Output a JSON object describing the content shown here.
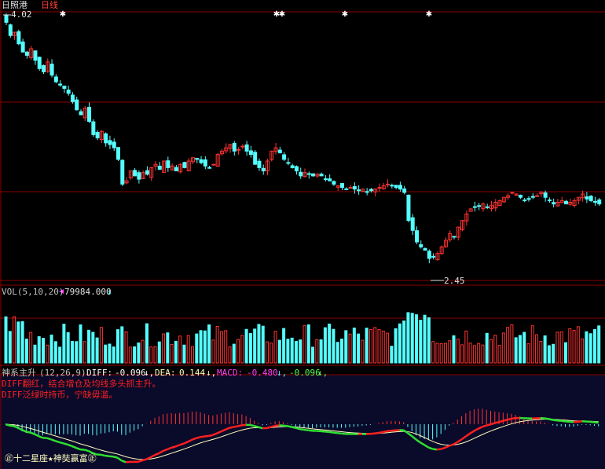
{
  "header": {
    "stock_name": "日照港",
    "period": "日线",
    "high_label": "4.02",
    "low_label": "2.45"
  },
  "volume_panel": {
    "label": "VOL(5,10,20)",
    "value": "79984.000"
  },
  "indicator_panel": {
    "name": "神系主升",
    "params": "(12,26,9)",
    "diff_label": "DIFF:",
    "diff_value": "-0.096",
    "dea_label": "DEA:",
    "dea_value": "0.144",
    "macd_label": "MACD:",
    "macd_value": "-0.480",
    "extra_value": "-0.096",
    "note1": "DIFF翻红，结合增仓及均线多头抓主升。",
    "note2": "DIFF泛绿时持币，宁缺毋滥。",
    "brand": "㊣十二星座★神奘赢富㊣"
  },
  "colors": {
    "up": "#ff3232",
    "down": "#54ffff",
    "grid": "#8b0000",
    "diff_up": "#ff2020",
    "diff_down": "#30e030",
    "dea": "#ffffc0",
    "macd_label": "#ff40ff",
    "note": "#ff2020",
    "panel_bg": "#0a0a2a"
  },
  "chart_data": {
    "type": "candlestick",
    "price_range": [
      2.45,
      4.02
    ],
    "close": [
      3.98,
      3.9,
      3.92,
      3.85,
      3.8,
      3.78,
      3.82,
      3.75,
      3.7,
      3.68,
      3.74,
      3.66,
      3.62,
      3.6,
      3.58,
      3.55,
      3.5,
      3.45,
      3.42,
      3.46,
      3.38,
      3.3,
      3.28,
      3.32,
      3.25,
      3.24,
      3.22,
      3.15,
      3.0,
      3.02,
      3.08,
      3.05,
      3.03,
      3.07,
      3.06,
      3.1,
      3.12,
      3.09,
      3.14,
      3.1,
      3.11,
      3.08,
      3.12,
      3.1,
      3.14,
      3.16,
      3.15,
      3.13,
      3.11,
      3.1,
      3.12,
      3.18,
      3.2,
      3.22,
      3.24,
      3.2,
      3.21,
      3.23,
      3.2,
      3.18,
      3.12,
      3.1,
      3.08,
      3.14,
      3.2,
      3.22,
      3.19,
      3.15,
      3.13,
      3.1,
      3.08,
      3.05,
      3.07,
      3.06,
      3.05,
      3.06,
      3.05,
      3.03,
      3.02,
      3.0,
      2.99,
      2.98,
      2.97,
      2.98,
      2.97,
      2.96,
      2.97,
      2.95,
      2.96,
      2.97,
      2.98,
      2.99,
      3.0,
      2.99,
      2.98,
      2.97,
      2.95,
      2.78,
      2.72,
      2.65,
      2.62,
      2.6,
      2.55,
      2.56,
      2.58,
      2.62,
      2.66,
      2.7,
      2.68,
      2.74,
      2.78,
      2.82,
      2.85,
      2.86,
      2.87,
      2.88,
      2.86,
      2.87,
      2.89,
      2.9,
      2.92,
      2.93,
      2.95,
      2.94,
      2.92,
      2.9,
      2.91,
      2.92,
      2.93,
      2.95,
      2.92,
      2.9,
      2.88,
      2.89,
      2.9,
      2.88,
      2.89,
      2.9,
      2.92,
      2.94,
      2.91,
      2.9,
      2.89,
      2.88
    ],
    "volume_series_count": 1,
    "indicator_lines": [
      "DIFF",
      "DEA",
      "MACD"
    ]
  }
}
